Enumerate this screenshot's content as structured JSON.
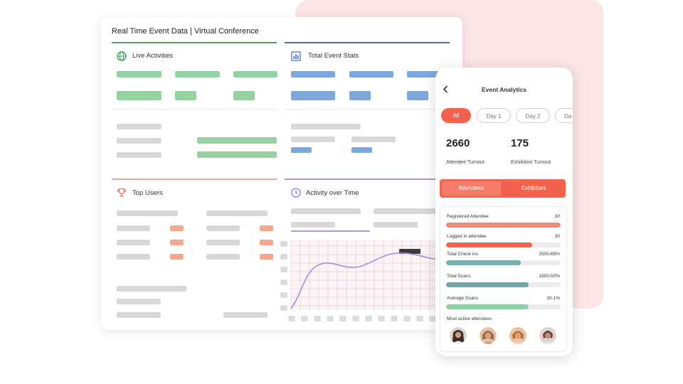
{
  "dashboard": {
    "title": "Real Time Event Data | Virtual Conference",
    "sections": {
      "live_activities": "Live Activities",
      "total_event_stats": "Total Event Stats",
      "top_users": "Top Users",
      "activity_over_time": "Activity over Time"
    },
    "colors": {
      "green": "#93d3a2",
      "blue": "#7ea7dd",
      "orange": "#f6a88b",
      "purple": "#a78ae0"
    },
    "icons": [
      "globe-icon",
      "bar-chart-icon",
      "trophy-icon",
      "clock-icon"
    ]
  },
  "phone": {
    "title": "Event Analytics",
    "back_icon": "chevron-left-icon",
    "filters": [
      "All",
      "Day 1",
      "Day 2",
      "Da"
    ],
    "active_filter": "All",
    "stats": [
      {
        "value": "2660",
        "label": "Attendee Turnout"
      },
      {
        "value": "175",
        "label": "Exhibition Turnout"
      }
    ],
    "toggle": {
      "active": "Attendees",
      "inactive": "Exhibitors"
    },
    "metrics": [
      {
        "label": "Registered Attendee",
        "value": "30",
        "fill": 1.0,
        "color": "#f08a76"
      },
      {
        "label": "Logged in attendee",
        "value": "30",
        "fill": 0.75,
        "color": "#f2624c"
      },
      {
        "label": "Total Check ins",
        "value": "2500-65%",
        "fill": 0.65,
        "color": "#77b0b2"
      },
      {
        "label": "Total Scans",
        "value": "1500-50%",
        "fill": 0.72,
        "color": "#6ea8aa"
      },
      {
        "label": "Average Scans",
        "value": "30-1%",
        "fill": 0.72,
        "color": "#8fcfa6"
      }
    ],
    "most_active_label": "Most active attendees",
    "accent": "#f2624c"
  }
}
